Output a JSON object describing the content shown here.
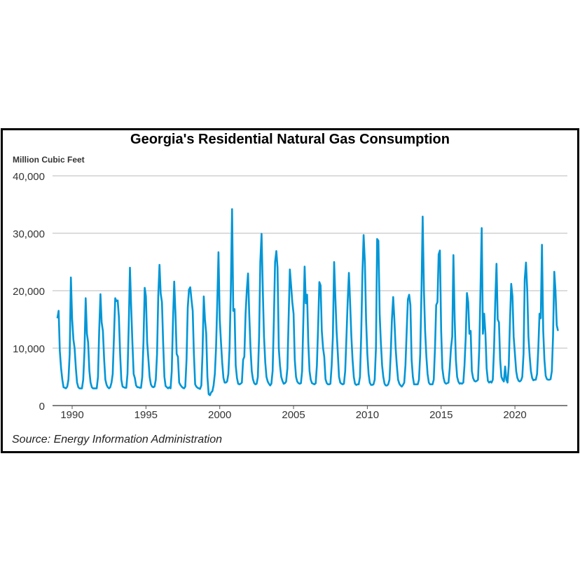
{
  "chart_data": {
    "type": "line",
    "title": "Georgia's Residential Natural Gas Consumption",
    "ylabel": "Million Cubic Feet",
    "xlabel": "",
    "source": "Source: Energy Information Administration",
    "ylim": [
      0,
      40000
    ],
    "yticks": [
      0,
      10000,
      20000,
      30000,
      40000
    ],
    "ytick_labels": [
      "0",
      "10,000",
      "20,000",
      "30,000",
      "40,000"
    ],
    "xticks": [
      1990,
      1995,
      2000,
      2005,
      2010,
      2015,
      2020
    ],
    "xtick_labels": [
      "1990",
      "1995",
      "2000",
      "2005",
      "2010",
      "2015",
      "2020"
    ],
    "grid": true,
    "line_color": "#0096d6",
    "x_start": "1989-01",
    "frequency": "monthly",
    "values": [
      15200,
      16500,
      9500,
      6500,
      4500,
      3200,
      3100,
      3000,
      3300,
      4500,
      9000,
      22300,
      15000,
      11500,
      10000,
      6500,
      4000,
      3200,
      3000,
      3000,
      3000,
      4500,
      9500,
      18700,
      12500,
      11000,
      6000,
      4000,
      3200,
      3000,
      3000,
      3000,
      3000,
      5000,
      13000,
      19400,
      14500,
      13000,
      8000,
      4500,
      3600,
      3200,
      3000,
      3200,
      4000,
      5500,
      12000,
      18700,
      18200,
      18300,
      15500,
      9000,
      4500,
      3300,
      3200,
      3100,
      3100,
      5500,
      14000,
      24000,
      17000,
      11000,
      5500,
      4800,
      3500,
      3200,
      3200,
      3100,
      3100,
      5000,
      11000,
      20500,
      19000,
      11000,
      8000,
      5000,
      3700,
      3300,
      3200,
      3300,
      4500,
      9000,
      19000,
      24500,
      19500,
      18000,
      11000,
      5000,
      3400,
      3200,
      3000,
      3200,
      3000,
      6000,
      15000,
      21600,
      16000,
      9000,
      8500,
      4000,
      3600,
      3300,
      3100,
      3000,
      3300,
      8000,
      17000,
      20200,
      20600,
      18500,
      16500,
      9000,
      3700,
      3300,
      3100,
      3000,
      2900,
      3500,
      9000,
      19000,
      15000,
      12500,
      5000,
      2000,
      1800,
      2300,
      2500,
      3500,
      5500,
      10000,
      18000,
      26700,
      15000,
      11000,
      7500,
      4800,
      4000,
      4000,
      4200,
      5500,
      10000,
      20000,
      34200,
      16500,
      16800,
      7000,
      4800,
      3800,
      3700,
      3800,
      4000,
      8000,
      8500,
      16000,
      20000,
      23000,
      16000,
      10000,
      6000,
      4600,
      3900,
      3700,
      3800,
      5000,
      12000,
      25000,
      29900,
      20000,
      12000,
      7500,
      5000,
      4200,
      3800,
      3500,
      3800,
      6000,
      15000,
      25000,
      26900,
      24000,
      10000,
      7000,
      5000,
      4300,
      3800,
      3900,
      4200,
      6500,
      15000,
      23700,
      21000,
      18000,
      16000,
      8000,
      5000,
      4200,
      3900,
      3800,
      3900,
      6000,
      15000,
      24200,
      17800,
      19300,
      11000,
      6000,
      4500,
      3900,
      3800,
      3700,
      3900,
      7000,
      14000,
      21500,
      20900,
      13000,
      10000,
      8500,
      4600,
      3900,
      3700,
      3700,
      3800,
      7000,
      12000,
      25000,
      19000,
      13000,
      9000,
      5000,
      4000,
      3800,
      3700,
      3800,
      6000,
      12000,
      18000,
      23100,
      18000,
      12000,
      8000,
      5000,
      3800,
      3600,
      3700,
      3700,
      5000,
      12000,
      23000,
      29700,
      25000,
      15000,
      9000,
      5500,
      4000,
      3600,
      3600,
      3700,
      4500,
      10000,
      29000,
      28700,
      16000,
      11000,
      7000,
      5000,
      3800,
      3500,
      3500,
      3700,
      4500,
      9000,
      15000,
      18900,
      15000,
      10000,
      7000,
      4500,
      3800,
      3500,
      3300,
      3600,
      4000,
      7000,
      13000,
      18500,
      19300,
      17500,
      8000,
      5000,
      3700,
      3700,
      3700,
      3700,
      4500,
      9000,
      20000,
      32900,
      20000,
      13000,
      8500,
      5500,
      4000,
      3700,
      3700,
      3700,
      4500,
      10000,
      17500,
      18000,
      26300,
      27000,
      13000,
      6500,
      4800,
      4000,
      3800,
      3900,
      4000,
      6500,
      10000,
      12000,
      26200,
      15000,
      8000,
      5000,
      4200,
      3800,
      3900,
      3800,
      4000,
      7000,
      12000,
      19600,
      18000,
      12500,
      13000,
      6000,
      4800,
      4300,
      4200,
      4300,
      4500,
      10000,
      20000,
      30900,
      12500,
      16000,
      12500,
      6500,
      4300,
      4000,
      4200,
      4000,
      4500,
      10000,
      18000,
      24700,
      15000,
      14500,
      8000,
      5000,
      4500,
      4200,
      6800,
      4500,
      4000,
      7000,
      15000,
      21200,
      19000,
      12000,
      9000,
      6000,
      4800,
      4300,
      4200,
      4400,
      5000,
      9000,
      22000,
      24900,
      20000,
      12000,
      8500,
      6000,
      4800,
      4400,
      4500,
      4500,
      5500,
      10000,
      16000,
      15200,
      28000,
      13000,
      8000,
      5200,
      4600,
      4500,
      4500,
      4600,
      6000,
      12000,
      23300,
      20000,
      14000,
      13000
    ]
  }
}
